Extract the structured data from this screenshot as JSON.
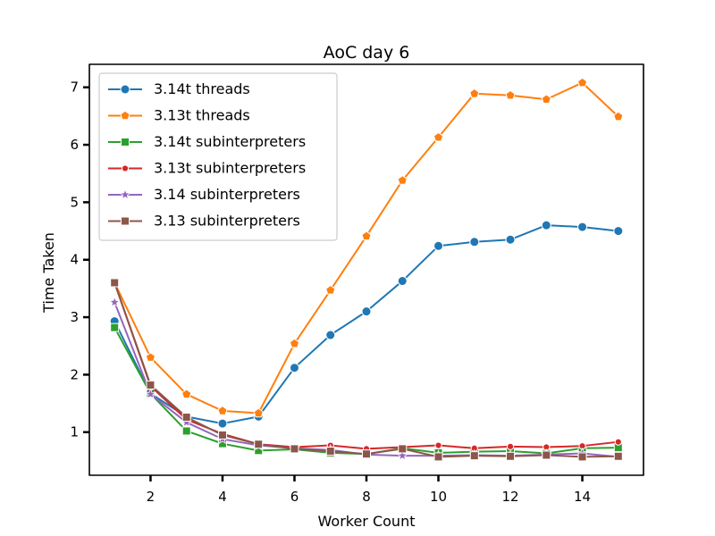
{
  "chart_data": {
    "type": "line",
    "title": "AoC day 6",
    "xlabel": "Worker Count",
    "ylabel": "Time Taken",
    "xlim": [
      0.3,
      15.7
    ],
    "ylim": [
      0.25,
      7.4
    ],
    "xticks": [
      2,
      4,
      6,
      8,
      10,
      12,
      14
    ],
    "yticks": [
      1,
      2,
      3,
      4,
      5,
      6,
      7
    ],
    "grid": false,
    "legend_position": "top-left",
    "x": [
      1,
      2,
      3,
      4,
      5,
      6,
      7,
      8,
      9,
      10,
      11,
      12,
      13,
      14,
      15
    ],
    "series": [
      {
        "name": "3.14t threads",
        "color": "#1f77b4",
        "marker": "circle",
        "values": [
          2.93,
          1.67,
          1.27,
          1.15,
          1.27,
          2.12,
          2.69,
          3.1,
          3.63,
          4.24,
          4.31,
          4.35,
          4.6,
          4.57,
          4.5
        ]
      },
      {
        "name": "3.13t threads",
        "color": "#ff7f0e",
        "marker": "pentagon",
        "values": [
          3.6,
          2.3,
          1.66,
          1.37,
          1.33,
          2.54,
          3.47,
          4.41,
          5.38,
          6.13,
          6.89,
          6.86,
          6.79,
          7.08,
          6.49
        ]
      },
      {
        "name": "3.14t subinterpreters",
        "color": "#2ca02c",
        "marker": "square",
        "values": [
          2.82,
          1.67,
          1.02,
          0.8,
          0.68,
          0.7,
          0.64,
          0.62,
          0.72,
          0.64,
          0.66,
          0.67,
          0.63,
          0.72,
          0.73
        ]
      },
      {
        "name": "3.13t subinterpreters",
        "color": "#d62728",
        "marker": "dot",
        "values": [
          3.6,
          1.8,
          1.22,
          0.97,
          0.79,
          0.74,
          0.77,
          0.71,
          0.74,
          0.77,
          0.72,
          0.75,
          0.74,
          0.76,
          0.83
        ]
      },
      {
        "name": "3.14 subinterpreters",
        "color": "#9467bd",
        "marker": "star",
        "values": [
          3.26,
          1.66,
          1.17,
          0.88,
          0.77,
          0.72,
          0.69,
          0.61,
          0.59,
          0.59,
          0.6,
          0.59,
          0.61,
          0.63,
          0.57
        ]
      },
      {
        "name": "3.13 subinterpreters",
        "color": "#8c564b",
        "marker": "square",
        "values": [
          3.6,
          1.82,
          1.26,
          0.95,
          0.79,
          0.71,
          0.67,
          0.62,
          0.71,
          0.57,
          0.59,
          0.58,
          0.6,
          0.57,
          0.58
        ]
      }
    ]
  }
}
